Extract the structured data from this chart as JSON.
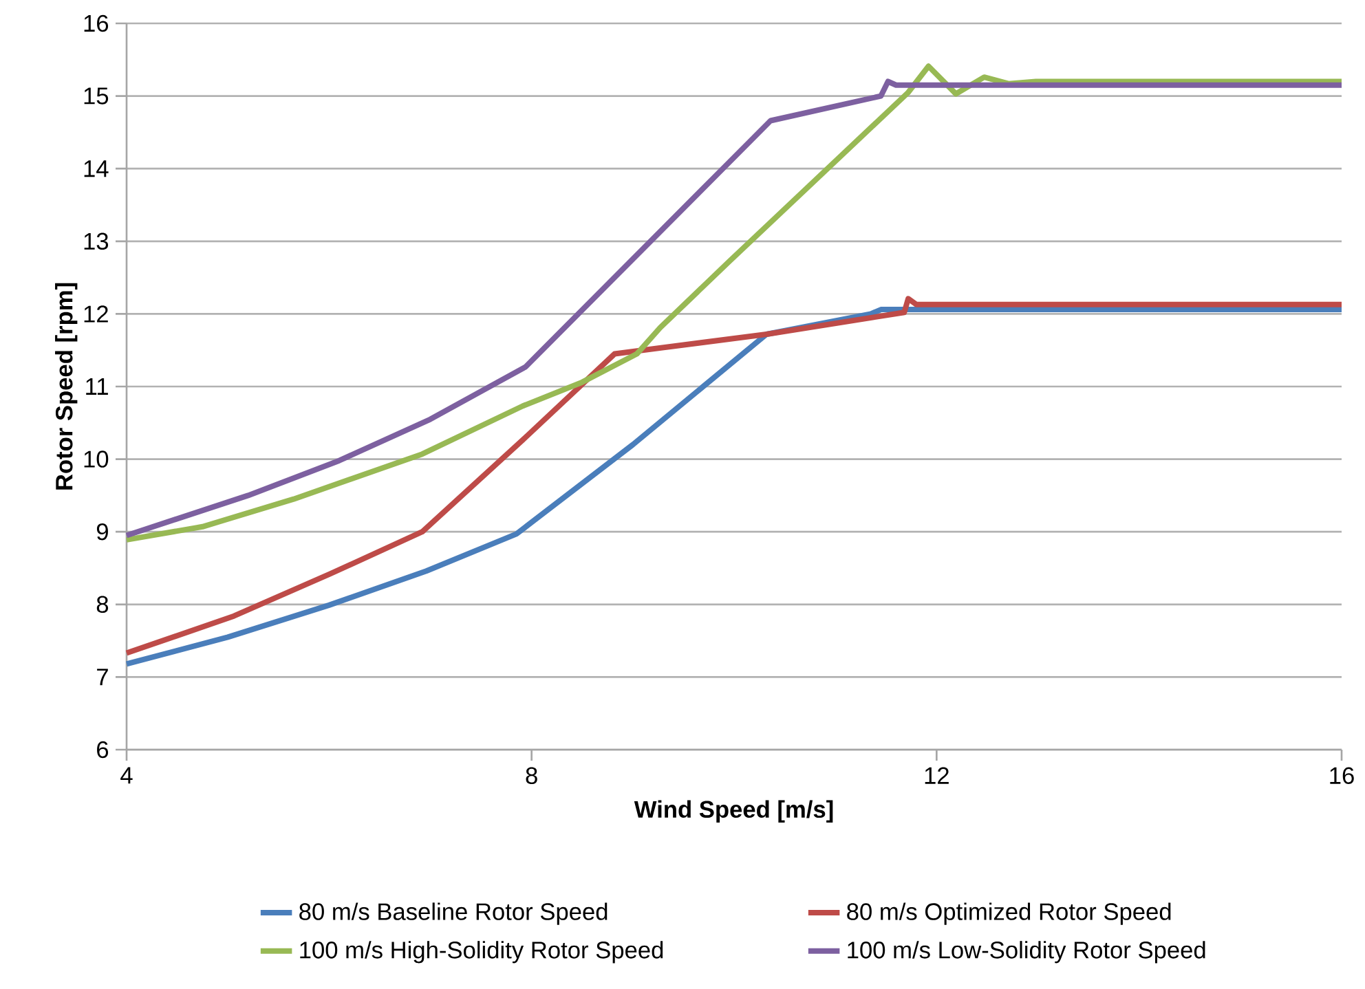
{
  "chart_data": {
    "type": "line",
    "xlabel": "Wind Speed [m/s]",
    "ylabel": "Rotor Speed [rpm]",
    "xlim": [
      4,
      16
    ],
    "xticks": [
      4,
      8,
      12,
      16
    ],
    "ylim": [
      6,
      16
    ],
    "yticks": [
      6,
      7,
      8,
      9,
      10,
      11,
      12,
      13,
      14,
      15,
      16
    ],
    "grid": "y",
    "legend": "bottom",
    "marker": "none",
    "line_style": "solid",
    "series": [
      {
        "name": "80 m/s Baseline Rotor Speed",
        "color": "#4a7ebb",
        "x": [
          4,
          5.0,
          6.0,
          6.96,
          7.85,
          9.0,
          10.32,
          11.35,
          11.45,
          16
        ],
        "values": [
          7.18,
          7.55,
          7.99,
          8.46,
          8.97,
          10.2,
          11.72,
          12.0,
          12.06,
          12.06
        ]
      },
      {
        "name": "80 m/s Optimized Rotor Speed",
        "color": "#be4b48",
        "x": [
          4,
          5.06,
          6.01,
          6.92,
          7.94,
          8.82,
          10.32,
          11.68,
          11.72,
          11.8,
          16
        ],
        "values": [
          7.33,
          7.84,
          8.42,
          9.0,
          10.3,
          11.45,
          11.72,
          12.02,
          12.21,
          12.13,
          12.13
        ]
      },
      {
        "name": "100 m/s High-Solidity Rotor Speed",
        "color": "#98b954",
        "x": [
          4,
          4.75,
          5.65,
          6.92,
          7.91,
          8.5,
          9.04,
          9.27,
          9.95,
          11.72,
          11.92,
          12.19,
          12.47,
          12.71,
          12.98,
          16
        ],
        "values": [
          8.89,
          9.07,
          9.45,
          10.07,
          10.73,
          11.06,
          11.45,
          11.81,
          12.72,
          15.05,
          15.41,
          15.03,
          15.26,
          15.17,
          15.2,
          15.2
        ]
      },
      {
        "name": "100 m/s Low-Solidity Rotor Speed",
        "color": "#7d60a0",
        "x": [
          4,
          5.2,
          6.1,
          7.0,
          7.94,
          10.36,
          11.45,
          11.52,
          11.6,
          16
        ],
        "values": [
          8.95,
          9.5,
          9.98,
          10.55,
          11.27,
          14.66,
          15.0,
          15.2,
          15.15,
          15.15
        ]
      }
    ]
  }
}
